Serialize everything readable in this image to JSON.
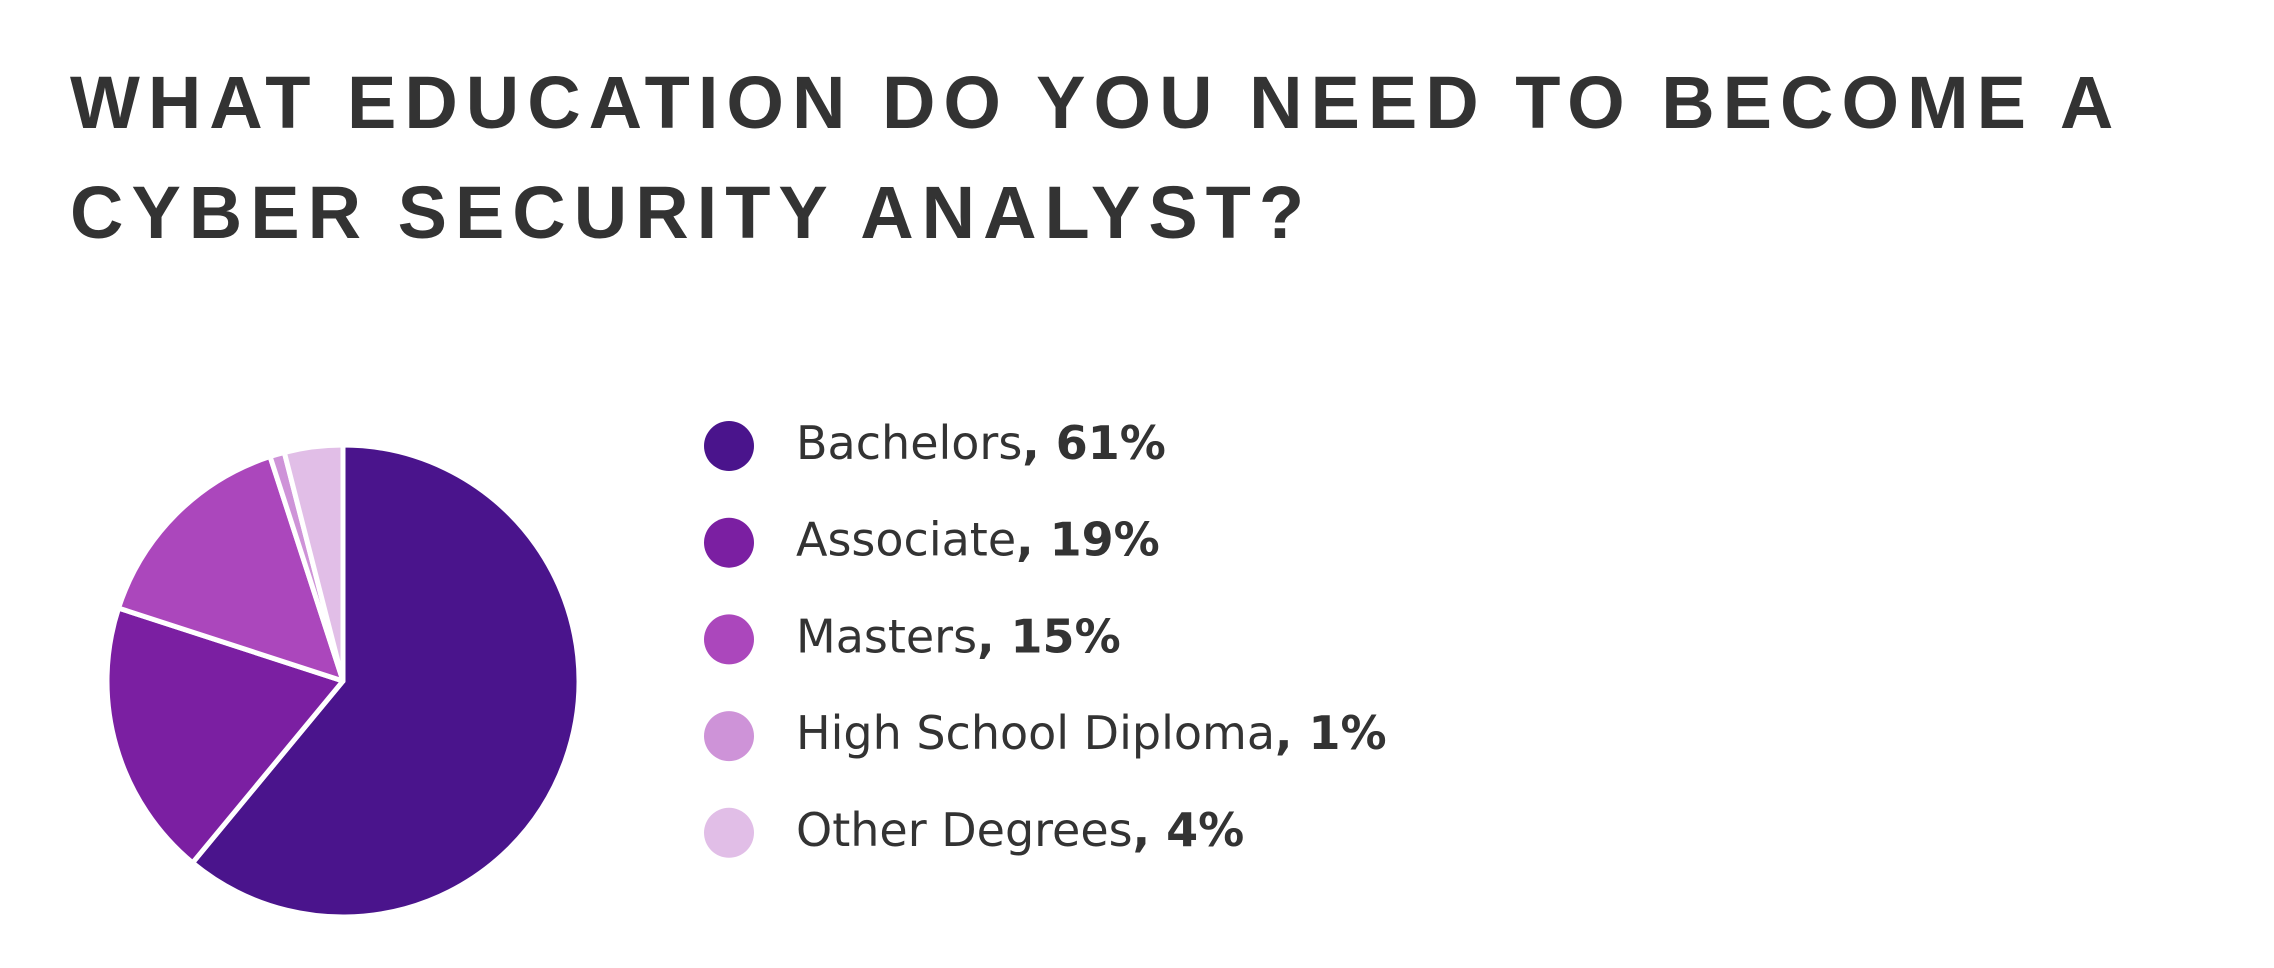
{
  "chart_data": {
    "type": "pie",
    "title": "WHAT EDUCATION DO YOU NEED TO BECOME A CYBER SECURITY ANALYST?",
    "categories": [
      "Bachelors",
      "Associate",
      "Masters",
      "High School Diploma",
      "Other Degrees"
    ],
    "values": [
      61,
      19,
      15,
      1,
      4
    ],
    "value_labels": [
      ", 61%",
      ", 19%",
      ", 15%",
      ", 1%",
      ", 4%"
    ],
    "colors": [
      "#4a148c",
      "#7b1fa2",
      "#ab47bc",
      "#ce93d8",
      "#e1bee7"
    ]
  }
}
